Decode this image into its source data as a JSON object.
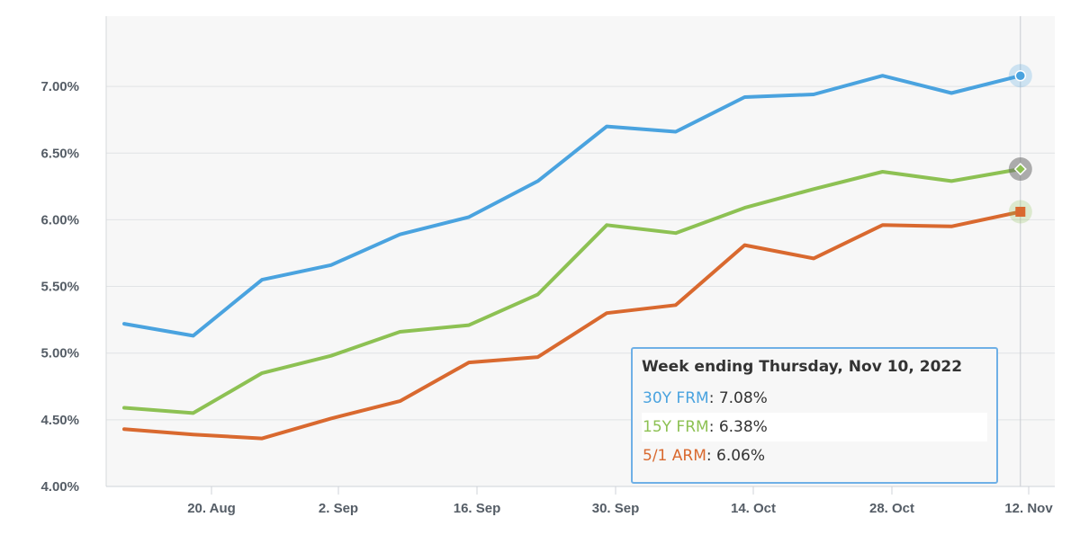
{
  "chart_data": {
    "type": "line",
    "x": [
      "2022-08-11",
      "2022-08-18",
      "2022-08-25",
      "2022-09-01",
      "2022-09-08",
      "2022-09-15",
      "2022-09-22",
      "2022-09-29",
      "2022-10-06",
      "2022-10-13",
      "2022-10-20",
      "2022-10-27",
      "2022-11-03",
      "2022-11-10"
    ],
    "x_tick_labels": [
      "20. Aug",
      "2. Sep",
      "16. Sep",
      "30. Sep",
      "14. Oct",
      "28. Oct",
      "12. Nov"
    ],
    "y_tick_labels": [
      "4.00%",
      "4.50%",
      "5.00%",
      "5.50%",
      "6.00%",
      "6.50%",
      "7.00%"
    ],
    "y_ticks": [
      4.0,
      4.5,
      5.0,
      5.5,
      6.0,
      6.5,
      7.0
    ],
    "ylim": [
      4.0,
      7.3
    ],
    "grid": true,
    "series": [
      {
        "name": "30Y FRM",
        "color": "#4aa3df",
        "marker": "circle",
        "values": [
          5.22,
          5.13,
          5.55,
          5.66,
          5.89,
          6.02,
          6.29,
          6.7,
          6.66,
          6.92,
          6.94,
          7.08,
          6.95,
          7.08
        ]
      },
      {
        "name": "15Y FRM",
        "color": "#8dc153",
        "marker": "diamond",
        "values": [
          4.59,
          4.55,
          4.85,
          4.98,
          5.16,
          5.21,
          5.44,
          5.96,
          5.9,
          6.09,
          6.23,
          6.36,
          6.29,
          6.38
        ]
      },
      {
        "name": "5/1 ARM",
        "color": "#d9692f",
        "marker": "square",
        "values": [
          4.43,
          4.39,
          4.36,
          4.51,
          4.64,
          4.93,
          4.97,
          5.3,
          5.36,
          5.81,
          5.71,
          5.96,
          5.95,
          6.06
        ]
      }
    ]
  },
  "tooltip": {
    "title": "Week ending Thursday, Nov 10, 2022",
    "rows": [
      {
        "name": "30Y FRM",
        "value": "7.08%",
        "color": "#4aa3df"
      },
      {
        "name": "15Y FRM",
        "value": "6.38%",
        "color": "#8dc153"
      },
      {
        "name": "5/1 ARM",
        "value": "6.06%",
        "color": "#d9692f"
      }
    ]
  }
}
